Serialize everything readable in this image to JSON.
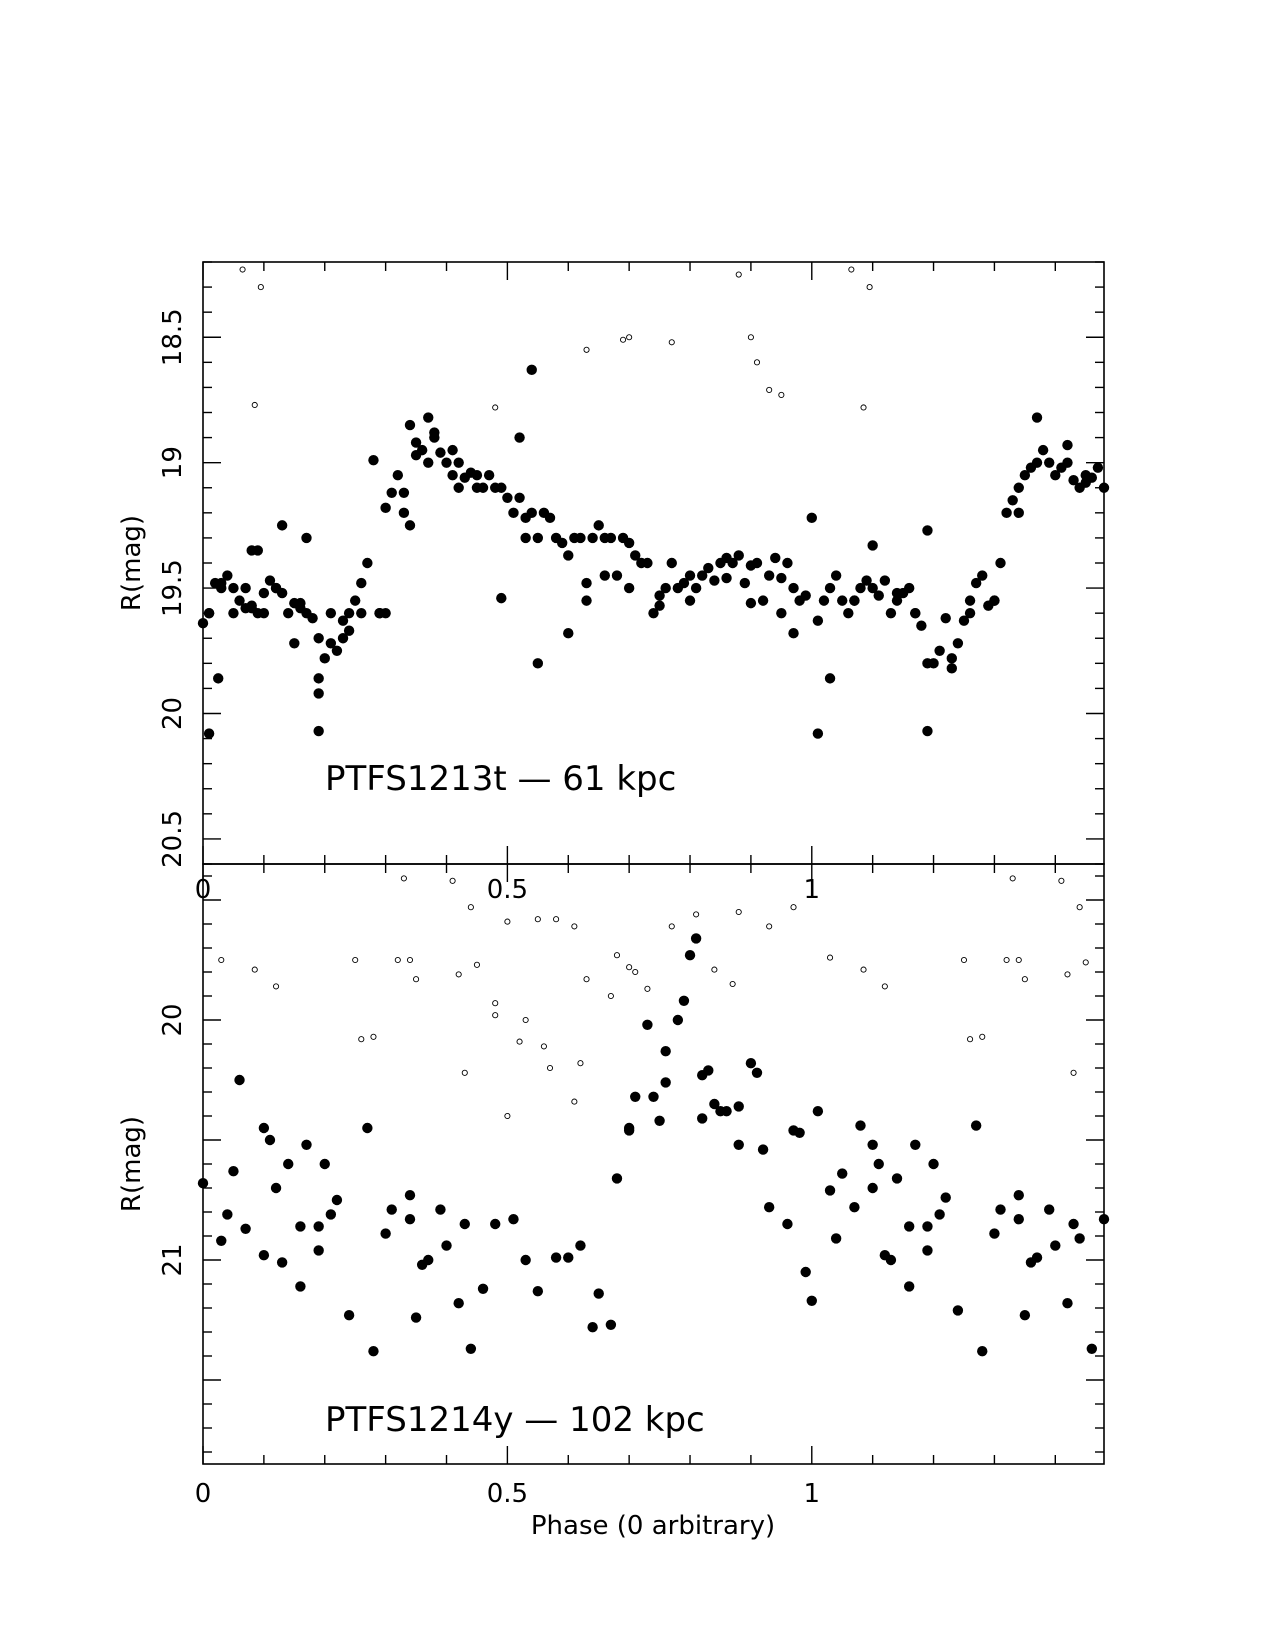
{
  "chart_data": [
    {
      "type": "scatter",
      "title": "PTFS1213t — 61 kpc",
      "annotation": "PTFS1213t — 61 kpc",
      "xlabel": "",
      "ylabel": "R(mag)",
      "xlim": [
        0,
        1.48
      ],
      "ylim": [
        20.6,
        18.2
      ],
      "y_inverted": true,
      "xticks": [
        0,
        0.5,
        1
      ],
      "xtick_labels": [
        "0",
        "0.5",
        "1"
      ],
      "yticks": [
        18.5,
        19,
        19.5,
        20,
        20.5
      ],
      "ytick_labels": [
        "18.5",
        "19",
        "19.5",
        "20",
        "20.5"
      ],
      "grid": false,
      "series": [
        {
          "marker": "filled-circle",
          "x": [
            0.0,
            0.01,
            0.01,
            0.02,
            0.03,
            0.03,
            0.04,
            0.05,
            0.06,
            0.07,
            0.07,
            0.08,
            0.08,
            0.09,
            0.09,
            0.1,
            0.1,
            0.11,
            0.12,
            0.13,
            0.13,
            0.14,
            0.15,
            0.15,
            0.16,
            0.17,
            0.17,
            0.18,
            0.19,
            0.19,
            0.2,
            0.21,
            0.21,
            0.22,
            0.23,
            0.24,
            0.24,
            0.25,
            0.26,
            0.27,
            0.28,
            0.29,
            0.29,
            0.3,
            0.31,
            0.32,
            0.33,
            0.33,
            0.34,
            0.35,
            0.35,
            0.36,
            0.37,
            0.38,
            0.38,
            0.39,
            0.4,
            0.41,
            0.42,
            0.42,
            0.43,
            0.44,
            0.45,
            0.46,
            0.47,
            0.48,
            0.49,
            0.5,
            0.51,
            0.52,
            0.53,
            0.53,
            0.54,
            0.55,
            0.56,
            0.57,
            0.58,
            0.59,
            0.6,
            0.61,
            0.62,
            0.63,
            0.64,
            0.65,
            0.66,
            0.67,
            0.68,
            0.69,
            0.7,
            0.71,
            0.72,
            0.73,
            0.74,
            0.75,
            0.76,
            0.77,
            0.78,
            0.79,
            0.8,
            0.81,
            0.82,
            0.83,
            0.84,
            0.85,
            0.86,
            0.87,
            0.88,
            0.89,
            0.9,
            0.91,
            0.92,
            0.93,
            0.94,
            0.95,
            0.96,
            0.97,
            0.98,
            0.99,
            1.0,
            1.01,
            1.02,
            1.03,
            1.04,
            1.05,
            1.06,
            1.07,
            1.08,
            1.09,
            1.1,
            1.11,
            1.12,
            1.13,
            1.14,
            1.15,
            1.16,
            1.17,
            1.18,
            1.19,
            1.2,
            1.21,
            1.22,
            1.23,
            1.24,
            1.25,
            1.26,
            1.27,
            1.28,
            1.29,
            1.3,
            1.31,
            1.32,
            1.33,
            1.34,
            1.35,
            1.36,
            1.37,
            1.38,
            1.39,
            1.4,
            1.41,
            1.42,
            1.43,
            1.44,
            1.45,
            1.46,
            1.47,
            1.48,
            0.01,
            0.025,
            0.05,
            0.08,
            0.12,
            0.16,
            0.19,
            0.19,
            0.23,
            0.26,
            0.3,
            0.34,
            0.37,
            0.41,
            0.45,
            0.49,
            0.52,
            0.54,
            0.55,
            0.6,
            0.63,
            0.66,
            0.7,
            0.75,
            0.8,
            0.86,
            0.9,
            0.95,
            0.97,
            1.01,
            1.03,
            1.07,
            1.1,
            1.14,
            1.17,
            1.19,
            1.19,
            1.23,
            1.26,
            1.3,
            1.34,
            1.37,
            1.42,
            1.45
          ],
          "y": [
            19.64,
            19.6,
            19.6,
            19.48,
            19.5,
            19.48,
            19.45,
            19.6,
            19.55,
            19.5,
            19.58,
            19.35,
            19.57,
            19.35,
            19.6,
            19.52,
            19.6,
            19.47,
            19.5,
            19.52,
            19.25,
            19.6,
            19.56,
            19.72,
            19.58,
            19.3,
            19.6,
            19.62,
            19.7,
            19.92,
            19.78,
            19.72,
            19.6,
            19.75,
            19.7,
            19.6,
            19.67,
            19.55,
            19.48,
            19.4,
            18.99,
            19.6,
            19.6,
            19.18,
            19.12,
            19.05,
            19.2,
            19.12,
            18.85,
            18.97,
            18.92,
            18.95,
            19.0,
            18.9,
            18.88,
            18.96,
            19.0,
            19.05,
            19.1,
            19.0,
            19.06,
            19.04,
            19.05,
            19.1,
            19.05,
            19.1,
            19.1,
            19.14,
            19.2,
            19.14,
            19.22,
            19.3,
            19.2,
            19.3,
            19.2,
            19.22,
            19.3,
            19.32,
            19.37,
            19.3,
            19.3,
            19.48,
            19.3,
            19.25,
            19.3,
            19.3,
            19.45,
            19.3,
            19.5,
            19.37,
            19.4,
            19.4,
            19.6,
            19.53,
            19.5,
            19.4,
            19.5,
            19.48,
            19.45,
            19.5,
            19.45,
            19.42,
            19.47,
            19.4,
            19.46,
            19.4,
            19.37,
            19.48,
            19.41,
            19.4,
            19.55,
            19.45,
            19.38,
            19.46,
            19.4,
            19.5,
            19.55,
            19.53,
            19.22,
            19.63,
            19.55,
            19.5,
            19.45,
            19.55,
            19.6,
            19.55,
            19.5,
            19.47,
            19.33,
            19.53,
            19.47,
            19.6,
            19.55,
            19.52,
            19.5,
            19.6,
            19.65,
            19.27,
            19.8,
            19.75,
            19.62,
            19.82,
            19.72,
            19.63,
            19.55,
            19.48,
            19.45,
            19.57,
            19.55,
            19.4,
            19.2,
            19.15,
            19.1,
            19.05,
            19.02,
            19.0,
            18.95,
            19.0,
            19.05,
            19.02,
            19.0,
            19.07,
            19.1,
            19.05,
            19.06,
            19.02,
            19.1,
            20.08,
            19.86,
            19.5,
            19.58,
            19.5,
            19.56,
            19.86,
            20.07,
            19.63,
            19.6,
            19.6,
            19.25,
            18.82,
            18.95,
            19.1,
            19.54,
            18.9,
            18.63,
            19.8,
            19.68,
            19.55,
            19.45,
            19.32,
            19.57,
            19.55,
            19.38,
            19.56,
            19.6,
            19.68,
            20.08,
            19.86,
            19.55,
            19.5,
            19.52,
            19.6,
            19.8,
            20.07,
            19.78,
            19.6,
            19.55,
            19.2,
            18.82,
            18.93,
            19.08
          ],
          "name": ""
        },
        {
          "marker": "open-circle",
          "x": [
            0.065,
            0.085,
            0.095,
            0.48,
            0.63,
            0.69,
            0.7,
            0.77,
            0.88,
            0.9,
            0.91,
            0.93,
            0.95,
            1.065,
            1.085,
            1.095
          ],
          "y": [
            18.23,
            18.77,
            18.3,
            18.78,
            18.55,
            18.51,
            18.5,
            18.52,
            18.25,
            18.5,
            18.6,
            18.71,
            18.73,
            18.23,
            18.78,
            18.3
          ],
          "name": ""
        }
      ]
    },
    {
      "type": "scatter",
      "title": "PTFS1214y — 102 kpc",
      "annotation": "PTFS1214y — 102 kpc",
      "xlabel": "Phase (0 arbitrary)",
      "ylabel": "R(mag)",
      "xlim": [
        0,
        1.48
      ],
      "ylim": [
        21.85,
        19.35
      ],
      "y_inverted": true,
      "xticks": [
        0,
        0.5,
        1
      ],
      "xtick_labels": [
        "0",
        "0.5",
        "1"
      ],
      "yticks": [
        20,
        21
      ],
      "ytick_labels": [
        "20",
        "21"
      ],
      "grid": false,
      "series": [
        {
          "marker": "filled-circle",
          "x": [
            0.0,
            0.03,
            0.04,
            0.05,
            0.06,
            0.07,
            0.1,
            0.1,
            0.11,
            0.12,
            0.13,
            0.14,
            0.16,
            0.16,
            0.17,
            0.19,
            0.19,
            0.2,
            0.21,
            0.22,
            0.24,
            0.27,
            0.28,
            0.3,
            0.31,
            0.34,
            0.34,
            0.35,
            0.36,
            0.37,
            0.39,
            0.4,
            0.42,
            0.43,
            0.44,
            0.46,
            0.48,
            0.51,
            0.53,
            0.55,
            0.58,
            0.6,
            0.62,
            0.64,
            0.65,
            0.67,
            0.68,
            0.7,
            0.7,
            0.71,
            0.73,
            0.74,
            0.75,
            0.76,
            0.76,
            0.78,
            0.79,
            0.8,
            0.81,
            0.82,
            0.82,
            0.83,
            0.84,
            0.85,
            0.86,
            0.88,
            0.88,
            0.9,
            0.91,
            0.92,
            0.93,
            0.96,
            0.97,
            0.98,
            0.99,
            1.0,
            1.01,
            1.03,
            1.04,
            1.05,
            1.07,
            1.08,
            1.1,
            1.1,
            1.11,
            1.12,
            1.13,
            1.14,
            1.16,
            1.16,
            1.17,
            1.19,
            1.19,
            1.2,
            1.21,
            1.22,
            1.24,
            1.27,
            1.28,
            1.3,
            1.31,
            1.34,
            1.34,
            1.35,
            1.36,
            1.37,
            1.39,
            1.4,
            1.42,
            1.43,
            1.44,
            1.46,
            1.48
          ],
          "y": [
            20.68,
            20.92,
            20.81,
            20.63,
            20.25,
            20.87,
            20.45,
            20.98,
            20.5,
            20.7,
            21.01,
            20.6,
            20.86,
            21.11,
            20.52,
            20.86,
            20.96,
            20.6,
            20.81,
            20.75,
            21.23,
            20.45,
            21.38,
            20.89,
            20.79,
            20.73,
            20.83,
            21.24,
            21.02,
            21.0,
            20.79,
            20.94,
            21.18,
            20.85,
            21.37,
            21.12,
            20.85,
            20.83,
            21.0,
            21.13,
            20.99,
            20.99,
            20.94,
            21.28,
            21.14,
            21.27,
            20.66,
            20.45,
            20.46,
            20.32,
            20.02,
            20.32,
            20.42,
            20.13,
            20.26,
            20.0,
            19.92,
            19.73,
            19.66,
            20.23,
            20.41,
            20.21,
            20.35,
            20.38,
            20.38,
            20.52,
            20.36,
            20.18,
            20.22,
            20.54,
            20.78,
            20.85,
            20.46,
            20.47,
            21.05,
            21.17,
            20.38,
            20.71,
            20.91,
            20.64,
            20.78,
            20.44,
            20.52,
            20.7,
            20.6,
            20.98,
            21.0,
            20.66,
            20.86,
            21.11,
            20.52,
            20.86,
            20.96,
            20.6,
            20.81,
            20.74,
            21.21,
            20.44,
            21.38,
            20.89,
            20.79,
            20.73,
            20.83,
            21.23,
            21.01,
            20.99,
            20.79,
            20.94,
            21.18,
            20.85,
            20.91,
            21.37,
            20.83
          ],
          "name": ""
        },
        {
          "marker": "open-circle",
          "x": [
            0.03,
            0.085,
            0.12,
            0.19,
            0.21,
            0.25,
            0.26,
            0.28,
            0.28,
            0.3,
            0.32,
            0.33,
            0.34,
            0.35,
            0.39,
            0.41,
            0.42,
            0.43,
            0.44,
            0.45,
            0.48,
            0.48,
            0.5,
            0.5,
            0.52,
            0.53,
            0.55,
            0.56,
            0.57,
            0.58,
            0.61,
            0.61,
            0.62,
            0.63,
            0.67,
            0.68,
            0.7,
            0.71,
            0.73,
            0.77,
            0.81,
            0.84,
            0.87,
            0.88,
            0.93,
            0.97,
            1.03,
            1.085,
            1.12,
            1.19,
            1.21,
            1.25,
            1.26,
            1.28,
            1.28,
            1.3,
            1.32,
            1.33,
            1.34,
            1.35,
            1.39,
            1.41,
            1.42,
            1.43,
            1.44,
            1.45
          ],
          "y": [
            19.75,
            19.79,
            19.86,
            19.31,
            19.25,
            19.75,
            20.08,
            20.07,
            19.32,
            19.28,
            19.75,
            19.41,
            19.75,
            19.83,
            19.28,
            19.42,
            19.81,
            20.22,
            19.53,
            19.77,
            19.93,
            19.98,
            19.59,
            20.4,
            20.09,
            20.0,
            19.58,
            20.11,
            20.2,
            19.58,
            19.61,
            20.34,
            20.18,
            19.83,
            19.9,
            19.73,
            19.78,
            19.8,
            19.87,
            19.61,
            19.56,
            19.79,
            19.85,
            19.55,
            19.61,
            19.53,
            19.74,
            19.79,
            19.86,
            19.31,
            19.25,
            19.75,
            20.08,
            19.32,
            20.07,
            19.28,
            19.75,
            19.41,
            19.75,
            19.83,
            19.28,
            19.42,
            19.81,
            20.22,
            19.53,
            19.76
          ],
          "name": ""
        }
      ]
    }
  ]
}
